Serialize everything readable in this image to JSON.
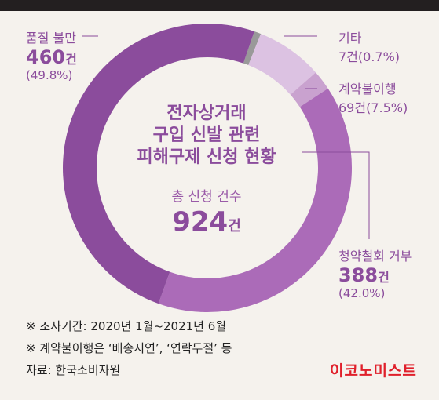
{
  "chart_data": {
    "type": "pie",
    "title_lines": [
      "전자상거래",
      "구입 신발 관련",
      "피해구제 신청 현황"
    ],
    "total_label": "총 신청 건수",
    "total_value": "924",
    "total_unit": "건",
    "slices": [
      {
        "name": "품질 불만",
        "count": "460",
        "unit": "건",
        "pct": "(49.8%)",
        "value": 460,
        "color": "#8b4c9c"
      },
      {
        "name": "청약철회 거부",
        "count": "388",
        "unit": "건",
        "pct": "(42.0%)",
        "value": 388,
        "color": "#ab6bb8"
      },
      {
        "name": "계약불이행",
        "count": "69건(7.5%)",
        "value": 69,
        "color": "#dcc2e2"
      },
      {
        "name": "기타",
        "count": "7건(0.7%)",
        "value": 7,
        "color": "#999999"
      }
    ],
    "band_color": "#c9a2cf"
  },
  "notes": [
    "※ 조사기간: 2020년 1월~2021년 6월",
    "※ 계약불이행은 ‘배송지연’, ‘연락두절’ 등",
    "자료: 한국소비자원"
  ],
  "logo": "이코노미스트"
}
